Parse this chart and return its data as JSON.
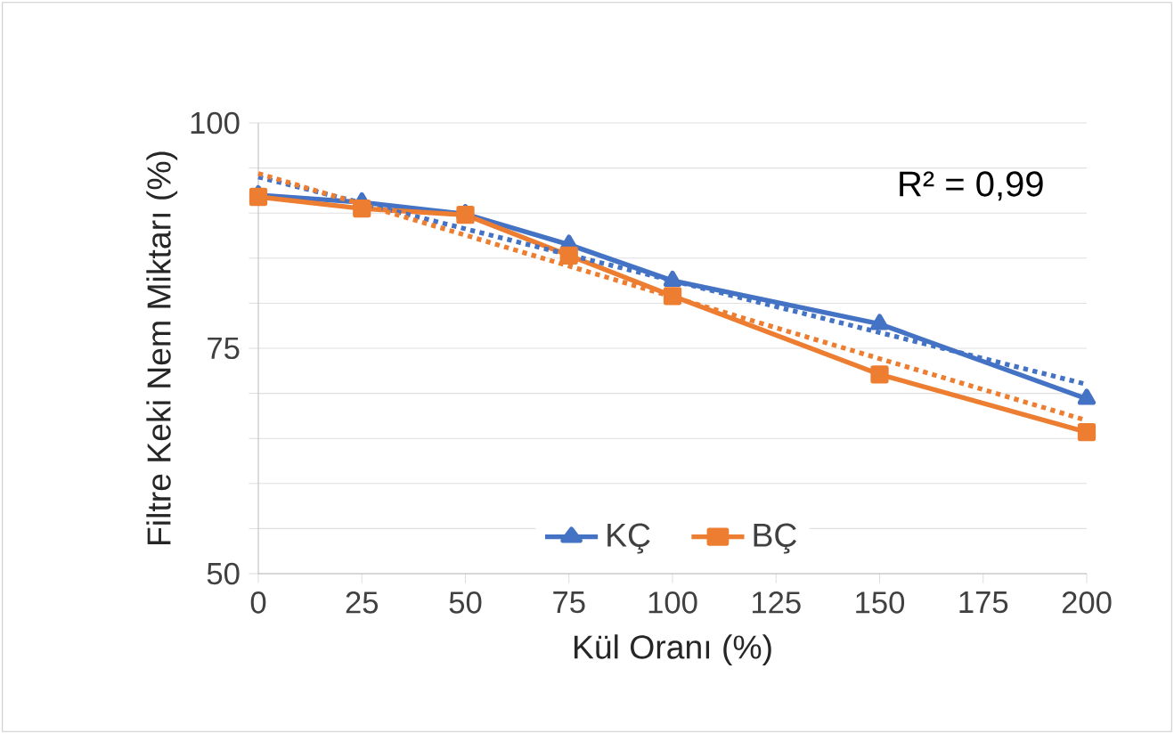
{
  "chart_data": {
    "type": "line",
    "xlabel": "Kül Oranı (%)",
    "ylabel": "Filtre Keki Nem Miktarı (%)",
    "xlim": [
      0,
      200
    ],
    "xticks": [
      0,
      25,
      50,
      75,
      100,
      125,
      150,
      175,
      200
    ],
    "ylim": [
      50,
      100
    ],
    "yticks": [
      50,
      {
        "value": 55,
        "label": null
      },
      {
        "value": 60,
        "label": null
      },
      {
        "value": 65,
        "label": null
      },
      {
        "value": 70,
        "label": null
      },
      75,
      {
        "value": 80,
        "label": null
      },
      {
        "value": 85,
        "label": null
      },
      {
        "value": 90,
        "label": null
      },
      {
        "value": 95,
        "label": null
      },
      100
    ],
    "grid": "y",
    "legend": "bottom",
    "annotations": [
      "R² = 0,99"
    ],
    "series": [
      {
        "name": "KÇ",
        "color": "#4472c4",
        "marker": "triangle",
        "line_style": "solid",
        "x": [
          0,
          25,
          50,
          75,
          100,
          150,
          200
        ],
        "values": [
          92,
          91.2,
          89.9,
          86.5,
          82.5,
          77.7,
          69.4
        ]
      },
      {
        "name": "BÇ",
        "color": "#ed7d31",
        "marker": "square",
        "line_style": "solid",
        "x": [
          0,
          25,
          50,
          75,
          100,
          150,
          200
        ],
        "values": [
          91.8,
          90.5,
          89.8,
          85.3,
          80.8,
          72.1,
          65.7
        ]
      },
      {
        "color": "#4472c4",
        "marker": "none",
        "line_style": "dotted",
        "x": [
          0,
          200
        ],
        "values": [
          94.0,
          71.0
        ]
      },
      {
        "color": "#ed7d31",
        "marker": "none",
        "line_style": "dotted",
        "x": [
          0,
          200
        ],
        "values": [
          94.4,
          67.0
        ]
      }
    ]
  }
}
